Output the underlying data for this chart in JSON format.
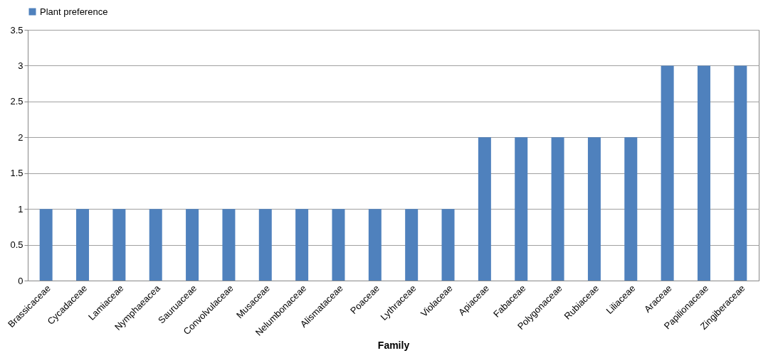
{
  "chart_data": {
    "type": "bar",
    "xlabel": "Family",
    "categories": [
      "Brassicaceae",
      "Cycadaceae",
      "Lamiaceae",
      "Nymphaeacea",
      "Sauruaceae",
      "Convolvulaceae",
      "Musaceae",
      "Nelumbonaceae",
      "Alismataceae",
      "Poaceae",
      "Lythraceae",
      "Violaceae",
      "Apiaceae",
      "Fabaceae",
      "Polygonaceae",
      "Rubiaceae",
      "Liliaceae",
      "Araceae",
      "Papilionaceae",
      "Zingiberaceae"
    ],
    "series": [
      {
        "name": "Plant preference",
        "color": "#4f81bd",
        "values": [
          1,
          1,
          1,
          1,
          1,
          1,
          1,
          1,
          1,
          1,
          1,
          1,
          2,
          2,
          2,
          2,
          2,
          3,
          3,
          3
        ]
      }
    ],
    "ylim": [
      0,
      3.5
    ],
    "yticks": [
      0,
      0.5,
      1,
      1.5,
      2,
      2.5,
      3,
      3.5
    ],
    "grid": "y",
    "legend": "top"
  }
}
